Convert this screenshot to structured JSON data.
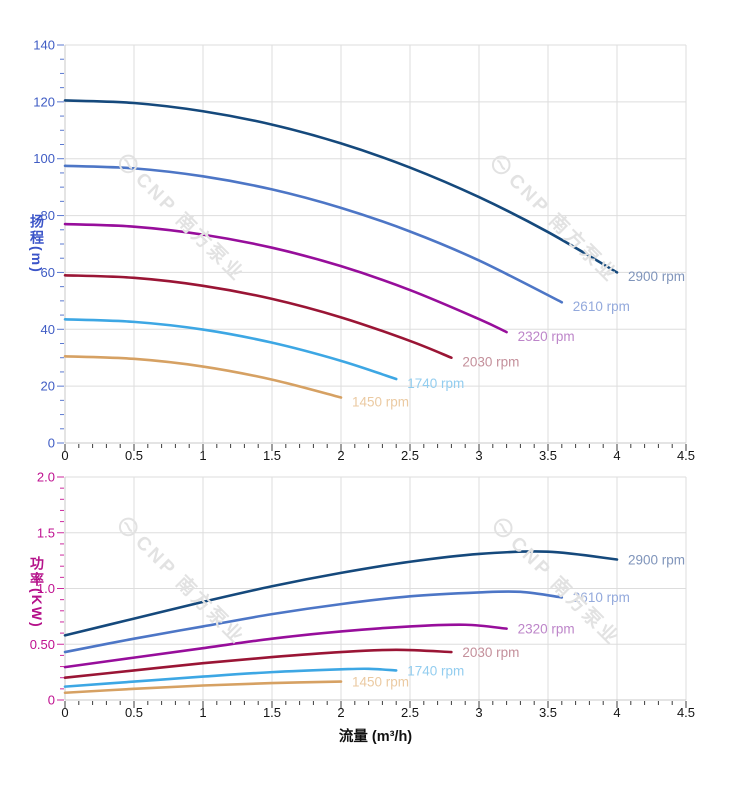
{
  "page": {
    "background": "#ffffff"
  },
  "watermark": {
    "text": "CNP 南方泵业",
    "color": "#e2e2e2"
  },
  "chart_data": [
    {
      "id": "head",
      "type": "line",
      "title": "",
      "xlabel": "",
      "xlim": [
        0,
        4.5
      ],
      "ylim": [
        0,
        140
      ],
      "grid": true,
      "grid_color": "#dddddd",
      "axis_line_color": "#c8c8c8",
      "legend_position": "curve-end-labels",
      "x_axis": {
        "major_step": 0.5,
        "minor_step": 0.1,
        "tick_values": [
          0,
          0.5,
          1,
          1.5,
          2,
          2.5,
          3,
          3.5,
          4,
          4.5
        ],
        "tick_labels": [
          "0",
          "0.5",
          "1",
          "1.5",
          "2",
          "2.5",
          "3",
          "3.5",
          "4",
          "4.5"
        ],
        "label_color": "#151515",
        "tick_color": "#3c3c3c"
      },
      "y_axis": {
        "title": "扬程(m)",
        "major_step": 20,
        "minor_step": 5,
        "tick_values": [
          0,
          20,
          40,
          60,
          80,
          100,
          120,
          140
        ],
        "tick_labels": [
          "0",
          "20",
          "40",
          "60",
          "80",
          "100",
          "120",
          "140"
        ],
        "label_color": "#3f5cc4",
        "tick_color": "#5b79d0",
        "title_color": "#3b54c8"
      },
      "series": [
        {
          "name": "2900 rpm",
          "color": "#15497c",
          "label_color": "#8095bb",
          "x": [
            0,
            0.5,
            1,
            1.5,
            2,
            2.5,
            3,
            3.5,
            4
          ],
          "y": [
            120.5,
            119.6,
            116.7,
            112,
            105.4,
            96.9,
            86.5,
            74.2,
            60
          ]
        },
        {
          "name": "2610 rpm",
          "color": "#4d76c6",
          "label_color": "#93a9dc",
          "x": [
            0,
            0.5,
            1,
            1.5,
            2,
            2.5,
            3,
            3.6
          ],
          "y": [
            97.5,
            96.6,
            93.8,
            89.2,
            82.7,
            74.4,
            64.2,
            49.5
          ]
        },
        {
          "name": "2320 rpm",
          "color": "#970e9b",
          "label_color": "#bd85c9",
          "x": [
            0,
            0.5,
            1,
            1.5,
            2,
            2.5,
            3,
            3.2
          ],
          "y": [
            77,
            76.1,
            73.3,
            68.7,
            62.2,
            53.8,
            43.6,
            39
          ]
        },
        {
          "name": "2030 rpm",
          "color": "#9a1535",
          "label_color": "#c4909b",
          "x": [
            0,
            0.5,
            1,
            1.5,
            2,
            2.5,
            2.8
          ],
          "y": [
            59,
            58.1,
            55.3,
            50.7,
            44.2,
            35.9,
            30
          ]
        },
        {
          "name": "1740 rpm",
          "color": "#3da7e4",
          "label_color": "#93cdef",
          "x": [
            0,
            0.5,
            1,
            1.5,
            2,
            2.4
          ],
          "y": [
            43.5,
            42.6,
            39.9,
            35.3,
            28.9,
            22.5
          ]
        },
        {
          "name": "1450 rpm",
          "color": "#d6a163",
          "label_color": "#ebcaa2",
          "x": [
            0,
            0.5,
            1,
            1.5,
            2
          ],
          "y": [
            30.5,
            29.6,
            26.9,
            22.3,
            16
          ]
        }
      ]
    },
    {
      "id": "power",
      "type": "line",
      "title": "",
      "xlabel": "流量 (m³/h)",
      "xlim": [
        0,
        4.5
      ],
      "ylim": [
        0,
        2
      ],
      "grid": true,
      "grid_color": "#dddddd",
      "axis_line_color": "#c8c8c8",
      "legend_position": "curve-end-labels",
      "x_axis": {
        "major_step": 0.5,
        "minor_step": 0.1,
        "tick_values": [
          0,
          0.5,
          1,
          1.5,
          2,
          2.5,
          3,
          3.5,
          4,
          4.5
        ],
        "tick_labels": [
          "0",
          "0.5",
          "1",
          "1.5",
          "2",
          "2.5",
          "3",
          "3.5",
          "4",
          "4.5"
        ],
        "label_color": "#151515",
        "tick_color": "#3c3c3c"
      },
      "y_axis": {
        "title": "功率(KW)",
        "major_step": 0.5,
        "minor_step": 0.1,
        "tick_values": [
          0,
          0.5,
          1,
          1.5,
          2
        ],
        "tick_labels": [
          "0",
          "0.50",
          "1.0",
          "1.5",
          "2.0"
        ],
        "label_color": "#bf1090",
        "tick_color": "#cc2a9e",
        "title_color": "#b5128a"
      },
      "series": [
        {
          "name": "2900 rpm",
          "color": "#15497c",
          "label_color": "#8095bb",
          "x": [
            0,
            0.5,
            1,
            1.5,
            2,
            2.5,
            3,
            3.5,
            4
          ],
          "y": [
            0.58,
            0.73,
            0.88,
            1.02,
            1.14,
            1.24,
            1.31,
            1.33,
            1.26
          ]
        },
        {
          "name": "2610 rpm",
          "color": "#4d76c6",
          "label_color": "#93a9dc",
          "x": [
            0,
            0.5,
            1,
            1.5,
            2,
            2.5,
            3,
            3.3,
            3.6
          ],
          "y": [
            0.43,
            0.55,
            0.66,
            0.77,
            0.86,
            0.93,
            0.965,
            0.97,
            0.92
          ]
        },
        {
          "name": "2320 rpm",
          "color": "#970e9b",
          "label_color": "#bd85c9",
          "x": [
            0,
            0.5,
            1,
            1.5,
            2,
            2.5,
            2.9,
            3.2
          ],
          "y": [
            0.295,
            0.38,
            0.465,
            0.55,
            0.615,
            0.66,
            0.675,
            0.64
          ]
        },
        {
          "name": "2030 rpm",
          "color": "#9a1535",
          "label_color": "#c4909b",
          "x": [
            0,
            0.5,
            1,
            1.5,
            2,
            2.4,
            2.8
          ],
          "y": [
            0.2,
            0.265,
            0.33,
            0.385,
            0.43,
            0.45,
            0.43
          ]
        },
        {
          "name": "1740 rpm",
          "color": "#3da7e4",
          "label_color": "#93cdef",
          "x": [
            0,
            0.5,
            1,
            1.5,
            2,
            2.2,
            2.4
          ],
          "y": [
            0.12,
            0.165,
            0.21,
            0.25,
            0.275,
            0.28,
            0.265
          ]
        },
        {
          "name": "1450 rpm",
          "color": "#d6a163",
          "label_color": "#ebcaa2",
          "x": [
            0,
            0.5,
            1,
            1.5,
            2
          ],
          "y": [
            0.065,
            0.1,
            0.13,
            0.152,
            0.165
          ]
        }
      ]
    }
  ]
}
